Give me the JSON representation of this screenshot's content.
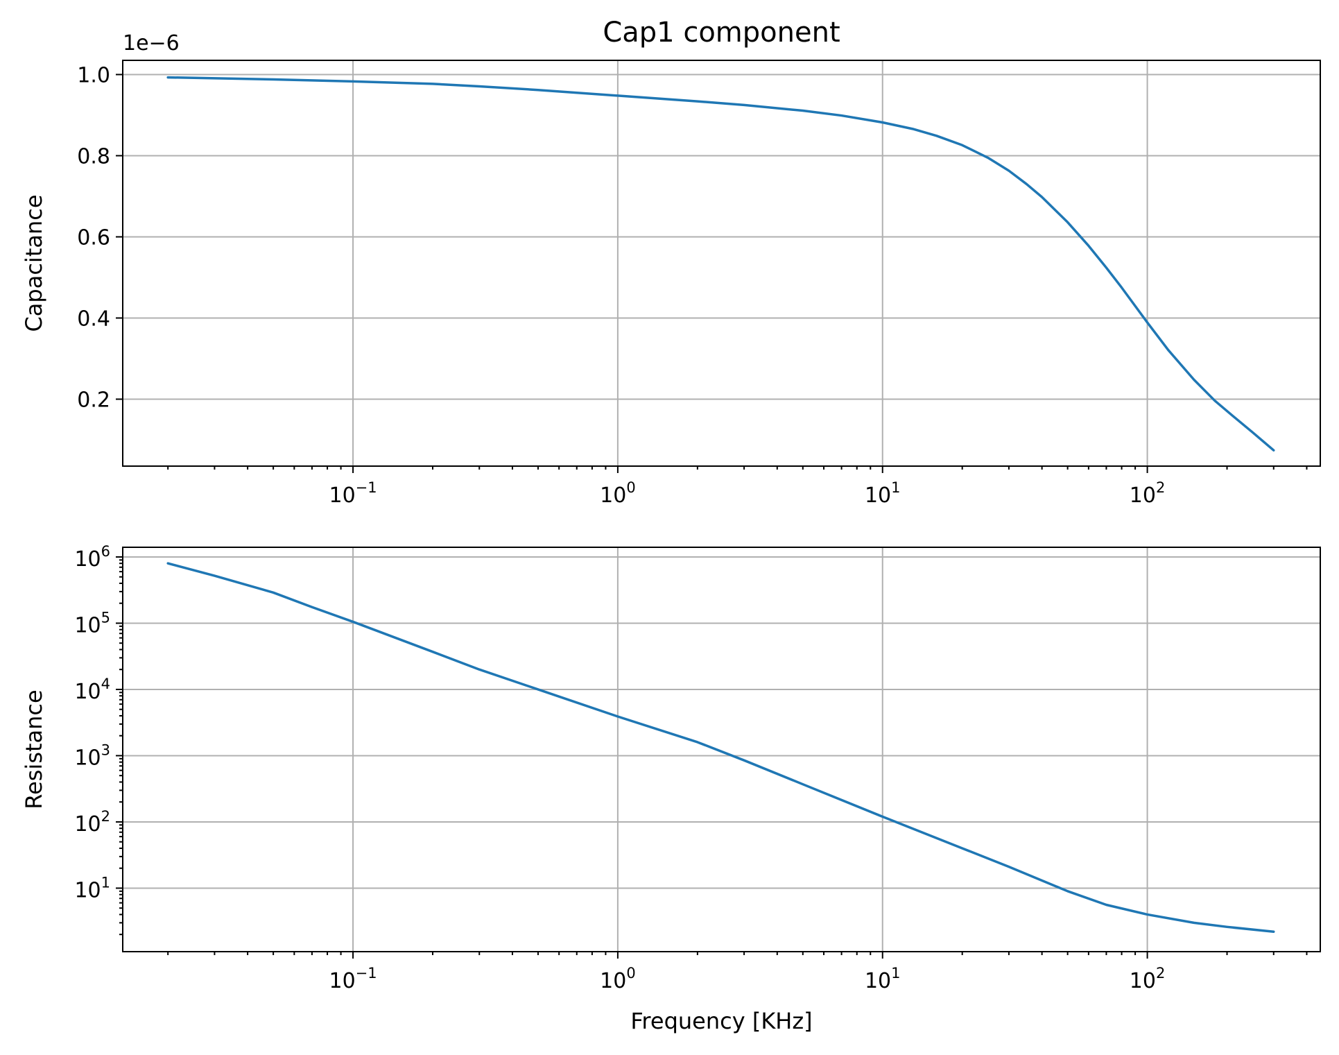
{
  "chart_data": [
    {
      "type": "line",
      "title": "Cap1 component",
      "xlabel": "",
      "ylabel": "Capacitance",
      "xscale": "log",
      "yscale": "linear",
      "y_offset_label": "1e−6",
      "xlim": [
        0.0135,
        450
      ],
      "ylim": [
        0.035,
        1.035
      ],
      "grid": true,
      "color": "#1f77b4",
      "x_ticks": [
        0.1,
        1,
        10,
        100
      ],
      "x_tick_labels": [
        {
          "base": "10",
          "exp": "−1"
        },
        {
          "base": "10",
          "exp": "0"
        },
        {
          "base": "10",
          "exp": "1"
        },
        {
          "base": "10",
          "exp": "2"
        }
      ],
      "y_ticks": [
        0.2,
        0.4,
        0.6,
        0.8,
        1.0
      ],
      "y_tick_labels": [
        "0.2",
        "0.4",
        "0.6",
        "0.8",
        "1.0"
      ],
      "series": [
        {
          "x": [
            0.02,
            0.05,
            0.1,
            0.2,
            0.3,
            0.5,
            1,
            2,
            3,
            5,
            7,
            10,
            13,
            16,
            20,
            25,
            30,
            35,
            40,
            50,
            60,
            70,
            80,
            100,
            120,
            150,
            180,
            210,
            250,
            300
          ],
          "y": [
            0.993,
            0.988,
            0.983,
            0.977,
            0.971,
            0.962,
            0.948,
            0.934,
            0.925,
            0.911,
            0.899,
            0.882,
            0.866,
            0.849,
            0.826,
            0.795,
            0.763,
            0.73,
            0.698,
            0.636,
            0.578,
            0.524,
            0.475,
            0.389,
            0.321,
            0.248,
            0.196,
            0.159,
            0.118,
            0.074
          ]
        }
      ]
    },
    {
      "type": "line",
      "title": "",
      "xlabel": "Frequency [KHz]",
      "ylabel": "Resistance",
      "xscale": "log",
      "yscale": "log",
      "xlim": [
        0.0135,
        450
      ],
      "ylim": [
        1.1,
        1400000
      ],
      "grid": true,
      "color": "#1f77b4",
      "x_ticks": [
        0.1,
        1,
        10,
        100
      ],
      "x_tick_labels": [
        {
          "base": "10",
          "exp": "−1"
        },
        {
          "base": "10",
          "exp": "0"
        },
        {
          "base": "10",
          "exp": "1"
        },
        {
          "base": "10",
          "exp": "2"
        }
      ],
      "y_ticks": [
        10,
        100,
        1000,
        10000,
        100000,
        1000000
      ],
      "y_tick_labels": [
        {
          "base": "10",
          "exp": "1"
        },
        {
          "base": "10",
          "exp": "2"
        },
        {
          "base": "10",
          "exp": "3"
        },
        {
          "base": "10",
          "exp": "4"
        },
        {
          "base": "10",
          "exp": "5"
        },
        {
          "base": "10",
          "exp": "6"
        }
      ],
      "series": [
        {
          "x": [
            0.02,
            0.03,
            0.05,
            0.07,
            0.1,
            0.2,
            0.3,
            0.5,
            1,
            2,
            3,
            5,
            10,
            20,
            30,
            50,
            70,
            100,
            150,
            200,
            300
          ],
          "y": [
            800000,
            520000,
            290000,
            175000,
            105000,
            37000,
            20000,
            10000,
            3900,
            1600,
            850,
            370,
            120,
            40,
            21,
            9,
            5.6,
            4.0,
            3.0,
            2.6,
            2.2
          ]
        }
      ]
    }
  ]
}
